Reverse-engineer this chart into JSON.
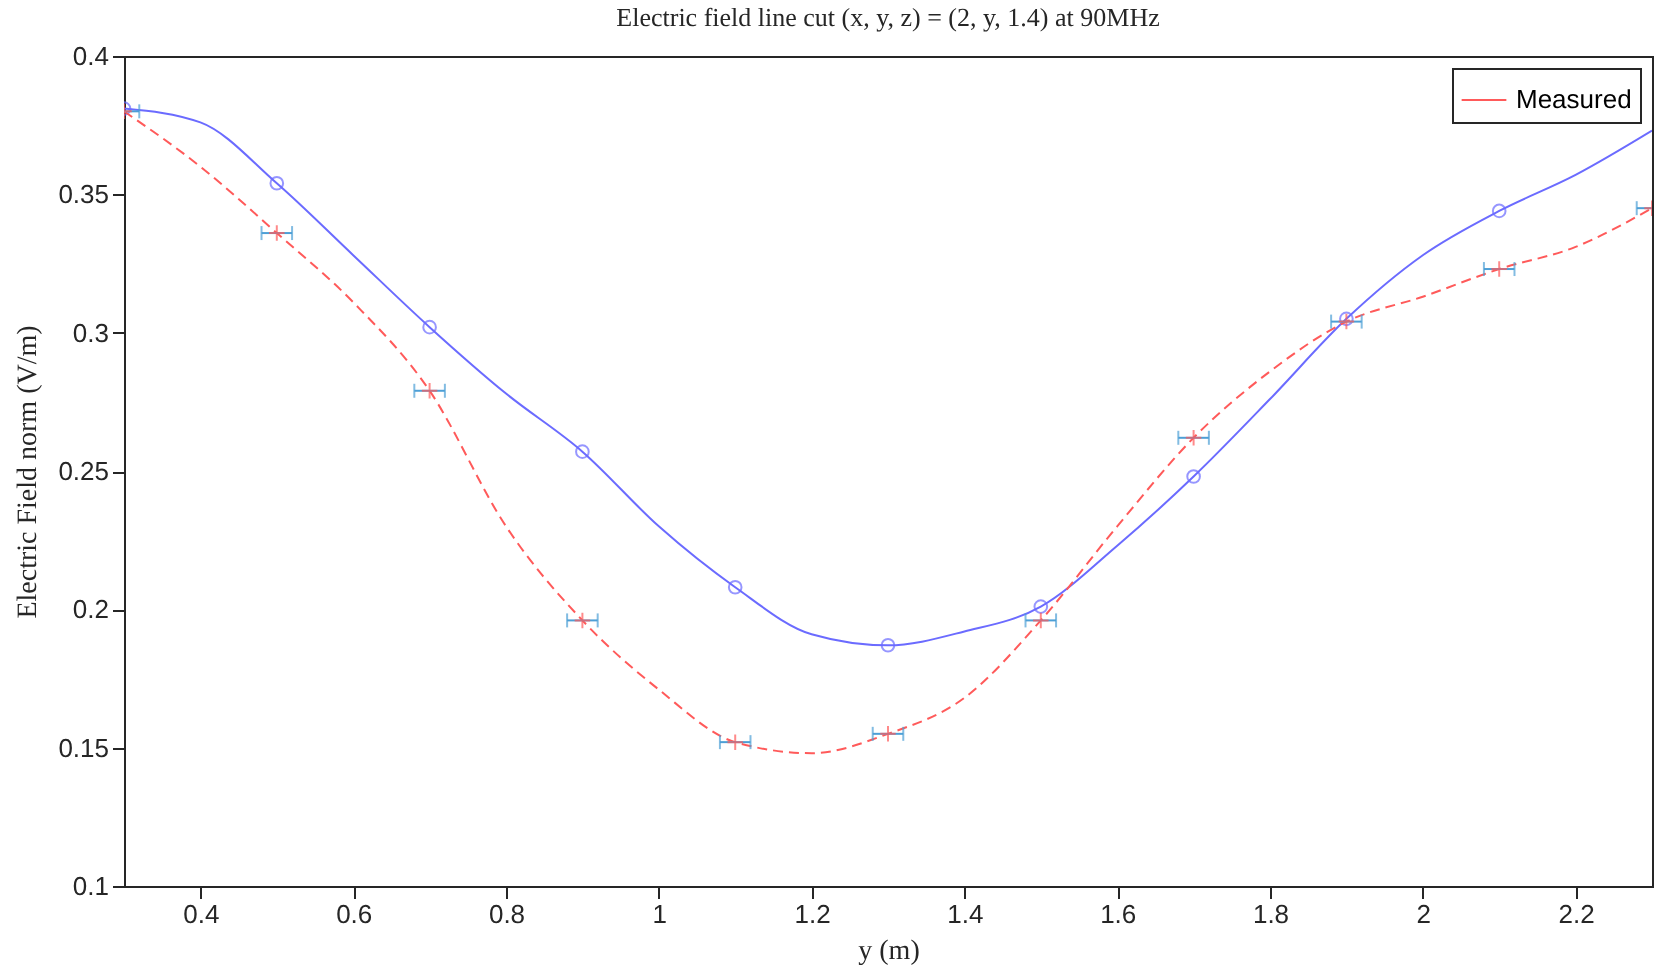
{
  "chart_data": {
    "type": "line",
    "title": "Electric field line cut (x, y, z) = (2, y, 1.4) at 90MHz",
    "xlabel": "y (m)",
    "ylabel": "Electric Field norm (V/m)",
    "xlim": [
      0.3,
      2.3
    ],
    "xticks": [
      0.4,
      0.6,
      0.8,
      1,
      1.2,
      1.4,
      1.6,
      1.8,
      2,
      2.2
    ],
    "ylim": [
      0.1,
      0.4
    ],
    "yticks": [
      0.1,
      0.15,
      0.2,
      0.25,
      0.3,
      0.35,
      0.4
    ],
    "grid": false,
    "legend": "top right",
    "series": [
      {
        "type": "scatter",
        "color": "#6b6bff",
        "marker": "circle",
        "x": [
          0.3,
          0.5,
          0.7,
          0.9,
          1.1,
          1.3,
          1.5,
          1.7,
          1.9,
          2.1
        ],
        "values": [
          0.381,
          0.354,
          0.302,
          0.257,
          0.208,
          0.187,
          0.201,
          0.248,
          0.305,
          0.344
        ]
      },
      {
        "color": "#6b6bff",
        "line_style": "solid",
        "marker": "none",
        "x": [
          0.3,
          0.4,
          0.5,
          0.6,
          0.7,
          0.8,
          0.9,
          1.0,
          1.1,
          1.2,
          1.3,
          1.4,
          1.5,
          1.6,
          1.7,
          1.8,
          1.9,
          2.0,
          2.1,
          2.2,
          2.3
        ],
        "values": [
          0.381,
          0.376,
          0.354,
          0.328,
          0.302,
          0.278,
          0.257,
          0.23,
          0.208,
          0.191,
          0.187,
          0.192,
          0.201,
          0.223,
          0.248,
          0.276,
          0.305,
          0.328,
          0.344,
          0.357,
          0.373
        ]
      },
      {
        "name": "Measured",
        "color": "#ff5a5a",
        "line_style": "dashed",
        "marker": "none",
        "x": [
          0.3,
          0.4,
          0.5,
          0.6,
          0.7,
          0.8,
          0.9,
          1.0,
          1.1,
          1.2,
          1.3,
          1.4,
          1.5,
          1.6,
          1.7,
          1.8,
          1.9,
          2.0,
          2.1,
          2.2,
          2.3
        ],
        "values": [
          0.38,
          0.36,
          0.336,
          0.311,
          0.279,
          0.23,
          0.196,
          0.171,
          0.152,
          0.148,
          0.155,
          0.168,
          0.196,
          0.23,
          0.262,
          0.286,
          0.304,
          0.313,
          0.323,
          0.331,
          0.345
        ]
      },
      {
        "type": "scatter",
        "color": "#ff5a5a",
        "marker": "cross",
        "x": [
          0.3,
          0.5,
          0.7,
          0.9,
          1.1,
          1.3,
          1.5,
          1.7,
          1.9,
          2.1,
          2.3
        ],
        "values": [
          0.38,
          0.336,
          0.279,
          0.196,
          0.152,
          0.155,
          0.196,
          0.262,
          0.304,
          0.323,
          0.345
        ],
        "xerrors": [
          0.02,
          0.02,
          0.02,
          0.02,
          0.02,
          0.02,
          0.02,
          0.02,
          0.02,
          0.02,
          0.02
        ]
      }
    ]
  }
}
